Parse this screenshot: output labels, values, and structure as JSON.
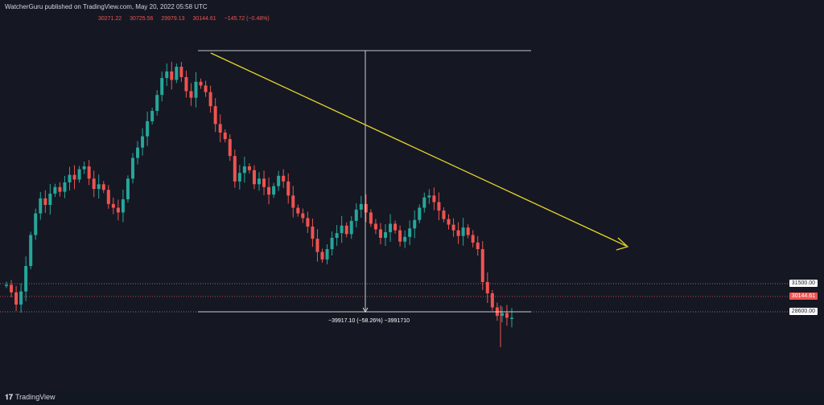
{
  "header": {
    "publisher": "WatcherGuru published on TradingView.com, May 20, 2022 05:58 UTC",
    "ohlc": [
      "30271.22",
      "30725.56",
      "29979.13",
      "30144.61",
      "−145.72 (−0.48%)"
    ]
  },
  "price_scale": {
    "level_high": "31500.00",
    "level_current": "30144.61",
    "level_low": "28600.00"
  },
  "measure": {
    "label": "−39917.10 (−58.26%) −3991710"
  },
  "footer": {
    "logo_text": "TradingView",
    "logo_icon": "tradingview-logo-icon"
  },
  "colors": {
    "background": "#131722",
    "up": "#26a69a",
    "down": "#ef5350",
    "trendline": "#e8d629",
    "current_price": "#ef5350",
    "level_lines": "#ffffff"
  },
  "chart_data": {
    "type": "candlestick",
    "description_free": true,
    "series_close_path": [
      33.6,
      32.8,
      31.5,
      32.9,
      35.6,
      38.9,
      41.2,
      42.8,
      42.1,
      43.3,
      44.0,
      43.5,
      44.5,
      45.3,
      44.8,
      45.9,
      46.2,
      44.9,
      43.8,
      44.3,
      43.7,
      42.2,
      41.8,
      41.3,
      42.7,
      44.9,
      47.1,
      48.2,
      49.4,
      51.0,
      52.1,
      53.8,
      55.6,
      56.3,
      55.4,
      56.8,
      55.7,
      54.2,
      53.5,
      55.2,
      54.8,
      54.1,
      52.6,
      50.7,
      49.8,
      49.1,
      47.3,
      44.6,
      45.5,
      46.2,
      45.8,
      44.3,
      44.9,
      44.0,
      43.2,
      44.1,
      45.2,
      44.6,
      43.1,
      41.8,
      41.2,
      40.7,
      39.8,
      38.5,
      37.1,
      36.3,
      37.4,
      38.6,
      39.1,
      39.9,
      39.0,
      40.4,
      41.6,
      42.2,
      41.3,
      40.1,
      39.5,
      38.6,
      39.2,
      40.1,
      39.4,
      38.2,
      38.7,
      39.6,
      40.5,
      41.8,
      42.9,
      43.1,
      42.4,
      41.5,
      40.6,
      40.0,
      39.4,
      38.8,
      39.7,
      38.9,
      38.1,
      37.4,
      33.9,
      32.7,
      31.2,
      30.3,
      30.6,
      30.1,
      30.1
    ],
    "price_levels": {
      "upper": 31500.0,
      "current": 30144.61,
      "lower": 28600.0
    },
    "measure_change": -39917.1,
    "measure_change_pct": -58.26,
    "trendline": "descending"
  }
}
